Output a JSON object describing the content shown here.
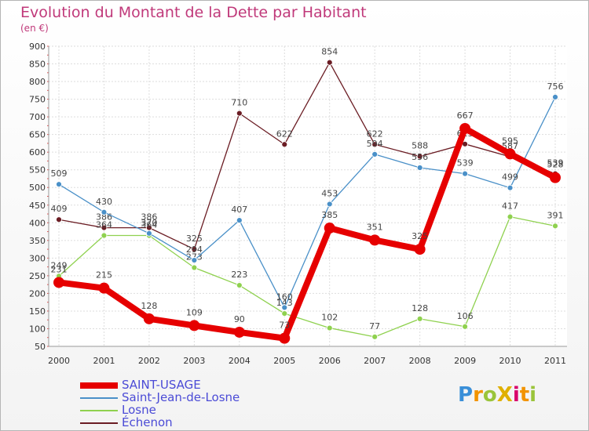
{
  "title": "Evolution du Montant de la Dette par Habitant",
  "subtitle": "(en €)",
  "logo": {
    "text": "ProXiti",
    "letters": [
      "P",
      "r",
      "o",
      "X",
      "i",
      "t",
      "i"
    ],
    "colors": [
      "#3a8fd8",
      "#f29300",
      "#9ac43a",
      "#e0b000",
      "#d9006b",
      "#f29300",
      "#9ac43a"
    ]
  },
  "chart_data": {
    "type": "line",
    "x": [
      "2000",
      "2001",
      "2002",
      "2003",
      "2004",
      "2005",
      "2006",
      "2007",
      "2008",
      "2009",
      "2010",
      "2011"
    ],
    "ylim": [
      50,
      900
    ],
    "yticks": [
      50,
      100,
      150,
      200,
      250,
      300,
      350,
      400,
      450,
      500,
      550,
      600,
      650,
      700,
      750,
      800,
      850,
      900
    ],
    "grid": true,
    "legend_position": "bottom-left",
    "series": [
      {
        "name": "SAINT-USAGE",
        "color": "#e60000",
        "values": [
          231,
          215,
          128,
          109,
          90,
          73,
          385,
          351,
          325,
          667,
          595,
          528
        ]
      },
      {
        "name": "Saint-Jean-de-Losne",
        "color": "#4a90c8",
        "values": [
          509,
          430,
          370,
          294,
          407,
          160,
          453,
          594,
          556,
          539,
          499,
          756
        ]
      },
      {
        "name": "Losne",
        "color": "#8fd14f",
        "values": [
          249,
          364,
          364,
          273,
          223,
          143,
          102,
          77,
          128,
          106,
          417,
          391
        ]
      },
      {
        "name": "Échenon",
        "color": "#6b1d24",
        "values": [
          409,
          386,
          386,
          325,
          710,
          622,
          854,
          622,
          588,
          623,
          587,
          539
        ]
      }
    ]
  }
}
